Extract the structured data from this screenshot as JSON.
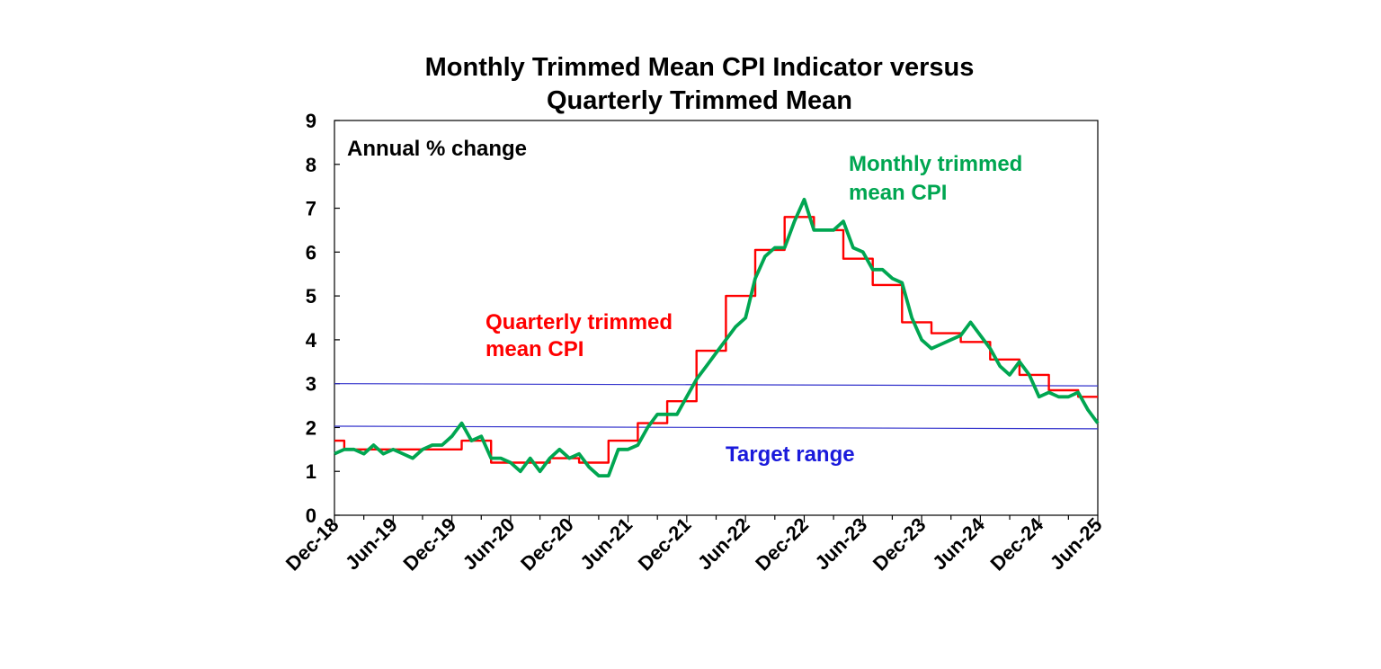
{
  "chart_data": {
    "type": "line",
    "title": [
      "Monthly Trimmed Mean CPI Indicator versus",
      "Quarterly Trimmed Mean"
    ],
    "unit_label": "Annual % change",
    "ylim": [
      0,
      9
    ],
    "yticks": [
      "0",
      "1",
      "2",
      "3",
      "4",
      "5",
      "6",
      "7",
      "8",
      "9"
    ],
    "xticks": [
      "Dec-18",
      "Jun-19",
      "Dec-19",
      "Jun-20",
      "Dec-20",
      "Jun-21",
      "Dec-21",
      "Jun-22",
      "Dec-22",
      "Jun-23",
      "Dec-23",
      "Jun-24",
      "Dec-24",
      "Jun-25"
    ],
    "x_months_span": 78,
    "grid": false,
    "legend": "inline labels",
    "target_range": {
      "label": "Target range",
      "lower": [
        2.03,
        1.97
      ],
      "upper": [
        3.0,
        2.95
      ]
    },
    "series": [
      {
        "name": "Monthly trimmed mean CPI",
        "label_lines": [
          "Monthly trimmed",
          "mean CPI"
        ],
        "color": "#00a651",
        "style": "monthly",
        "values": [
          1.4,
          1.5,
          1.5,
          1.4,
          1.6,
          1.4,
          1.5,
          1.4,
          1.3,
          1.5,
          1.6,
          1.6,
          1.8,
          2.1,
          1.7,
          1.8,
          1.3,
          1.3,
          1.2,
          1.0,
          1.3,
          1.0,
          1.3,
          1.5,
          1.3,
          1.4,
          1.1,
          0.9,
          0.9,
          1.5,
          1.5,
          1.6,
          2.0,
          2.3,
          2.3,
          2.3,
          2.7,
          3.1,
          3.4,
          3.7,
          4.0,
          4.3,
          4.5,
          5.4,
          5.9,
          6.1,
          6.1,
          6.7,
          7.2,
          6.5,
          6.5,
          6.5,
          6.7,
          6.1,
          6.0,
          5.6,
          5.6,
          5.4,
          5.3,
          4.5,
          4.0,
          3.8,
          3.9,
          4.0,
          4.1,
          4.4,
          4.1,
          3.8,
          3.4,
          3.2,
          3.5,
          3.2,
          2.7,
          2.8,
          2.7,
          2.7,
          2.8,
          2.4,
          2.1
        ]
      },
      {
        "name": "Quarterly trimmed mean CPI",
        "label_lines": [
          "Quarterly trimmed",
          "mean CPI"
        ],
        "color": "#ff0000",
        "style": "step",
        "values": [
          1.7,
          1.5,
          1.5,
          1.5,
          1.5,
          1.7,
          1.2,
          1.2,
          1.3,
          1.2,
          1.7,
          2.1,
          2.6,
          3.75,
          5.0,
          6.05,
          6.8,
          6.5,
          5.85,
          5.25,
          4.4,
          4.15,
          3.95,
          3.55,
          3.2,
          2.85,
          2.7
        ]
      }
    ]
  }
}
